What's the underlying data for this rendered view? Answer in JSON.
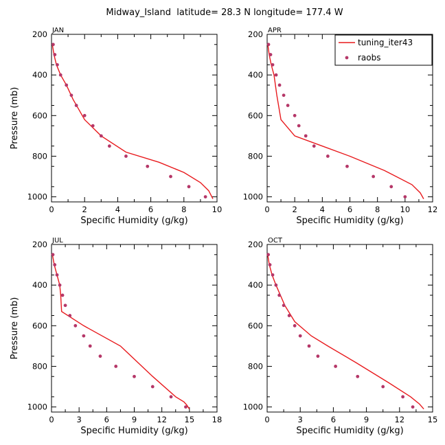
{
  "figure": {
    "title": "Midway_Island  latitude= 28.3 N longitude= 177.4 W"
  },
  "legend": {
    "model_label": "tuning_iter43",
    "obs_label": "raobs",
    "model_color": "#e8191c",
    "obs_color": "#b53768",
    "placement": "top-right of APR panel"
  },
  "chart_data": [
    {
      "type": "line",
      "panel": "JAN",
      "xlabel": "Specific Humidity (g/kg)",
      "ylabel": "Pressure (mb)",
      "xlim": [
        0,
        10
      ],
      "ylim": [
        1025,
        200
      ],
      "xticks": [
        0,
        2,
        4,
        6,
        8,
        10
      ],
      "yticks": [
        200,
        400,
        600,
        800,
        1000
      ],
      "grid": false,
      "series": [
        {
          "name": "tuning_iter43",
          "kind": "line",
          "x": [
            0.05,
            0.15,
            0.3,
            0.55,
            0.9,
            1.3,
            2.0,
            3.0,
            4.5,
            6.5,
            8.0,
            9.0,
            9.5,
            9.75
          ],
          "y": [
            250,
            300,
            350,
            400,
            450,
            520,
            620,
            700,
            780,
            830,
            880,
            930,
            970,
            1010
          ]
        },
        {
          "name": "raobs",
          "kind": "scatter",
          "x": [
            0.1,
            0.2,
            0.35,
            0.55,
            0.9,
            1.2,
            1.5,
            2.0,
            2.5,
            3.0,
            3.5,
            4.5,
            5.8,
            7.2,
            8.3,
            9.3
          ],
          "y": [
            250,
            300,
            350,
            400,
            450,
            500,
            550,
            600,
            650,
            700,
            750,
            800,
            850,
            900,
            950,
            1000
          ]
        }
      ]
    },
    {
      "type": "line",
      "panel": "APR",
      "xlabel": "Specific Humidity (g/kg)",
      "ylabel": "",
      "xlim": [
        0,
        12
      ],
      "ylim": [
        1025,
        200
      ],
      "xticks": [
        0,
        2,
        4,
        6,
        8,
        10,
        12
      ],
      "yticks": [
        200,
        400,
        600,
        800,
        1000
      ],
      "grid": false,
      "series": [
        {
          "name": "tuning_iter43",
          "kind": "line",
          "x": [
            0.05,
            0.15,
            0.3,
            0.5,
            0.7,
            1.0,
            2.0,
            4.0,
            6.0,
            8.5,
            10.5,
            11.1,
            11.35
          ],
          "y": [
            250,
            300,
            350,
            400,
            500,
            620,
            700,
            750,
            800,
            870,
            940,
            980,
            1010
          ]
        },
        {
          "name": "raobs",
          "kind": "scatter",
          "x": [
            0.1,
            0.25,
            0.4,
            0.65,
            0.9,
            1.2,
            1.5,
            2.0,
            2.3,
            2.8,
            3.4,
            4.4,
            5.8,
            7.7,
            9.0,
            10.0
          ],
          "y": [
            250,
            300,
            350,
            400,
            450,
            500,
            550,
            600,
            650,
            700,
            750,
            800,
            850,
            900,
            950,
            1000
          ]
        }
      ]
    },
    {
      "type": "line",
      "panel": "JUL",
      "xlabel": "Specific Humidity (g/kg)",
      "ylabel": "Pressure (mb)",
      "xlim": [
        0,
        18
      ],
      "ylim": [
        1025,
        200
      ],
      "xticks": [
        0,
        3,
        6,
        9,
        12,
        15,
        18
      ],
      "yticks": [
        200,
        400,
        600,
        800,
        1000
      ],
      "grid": false,
      "series": [
        {
          "name": "tuning_iter43",
          "kind": "line",
          "x": [
            0.1,
            0.3,
            0.6,
            0.9,
            1.0,
            1.1,
            3.5,
            7.5,
            11.0,
            13.5,
            14.4,
            14.7,
            15.0
          ],
          "y": [
            250,
            300,
            350,
            400,
            450,
            530,
            600,
            700,
            850,
            950,
            975,
            990,
            1010
          ]
        },
        {
          "name": "raobs",
          "kind": "scatter",
          "x": [
            0.15,
            0.35,
            0.6,
            0.9,
            1.2,
            1.5,
            2.0,
            2.6,
            3.5,
            4.2,
            5.3,
            7.0,
            9.0,
            11.0,
            13.0,
            14.6
          ],
          "y": [
            250,
            300,
            350,
            400,
            450,
            500,
            550,
            600,
            650,
            700,
            750,
            800,
            850,
            900,
            950,
            1000
          ]
        }
      ]
    },
    {
      "type": "line",
      "panel": "OCT",
      "xlabel": "Specific Humidity (g/kg)",
      "ylabel": "",
      "xlim": [
        0,
        15
      ],
      "ylim": [
        1025,
        200
      ],
      "xticks": [
        0,
        3,
        6,
        9,
        12,
        15
      ],
      "yticks": [
        200,
        400,
        600,
        800,
        1000
      ],
      "grid": false,
      "series": [
        {
          "name": "tuning_iter43",
          "kind": "line",
          "x": [
            0.05,
            0.2,
            0.45,
            0.8,
            1.2,
            1.6,
            2.5,
            4.0,
            5.5,
            8.0,
            11.0,
            13.0,
            13.8,
            14.2
          ],
          "y": [
            250,
            300,
            350,
            400,
            450,
            500,
            580,
            650,
            700,
            780,
            880,
            950,
            985,
            1010
          ]
        },
        {
          "name": "raobs",
          "kind": "scatter",
          "x": [
            0.1,
            0.25,
            0.5,
            0.8,
            1.1,
            1.5,
            2.0,
            2.5,
            3.0,
            3.8,
            4.6,
            6.2,
            8.2,
            10.5,
            12.3,
            13.2
          ],
          "y": [
            250,
            300,
            350,
            400,
            450,
            500,
            550,
            600,
            650,
            700,
            750,
            800,
            850,
            900,
            950,
            1000
          ]
        }
      ]
    }
  ]
}
